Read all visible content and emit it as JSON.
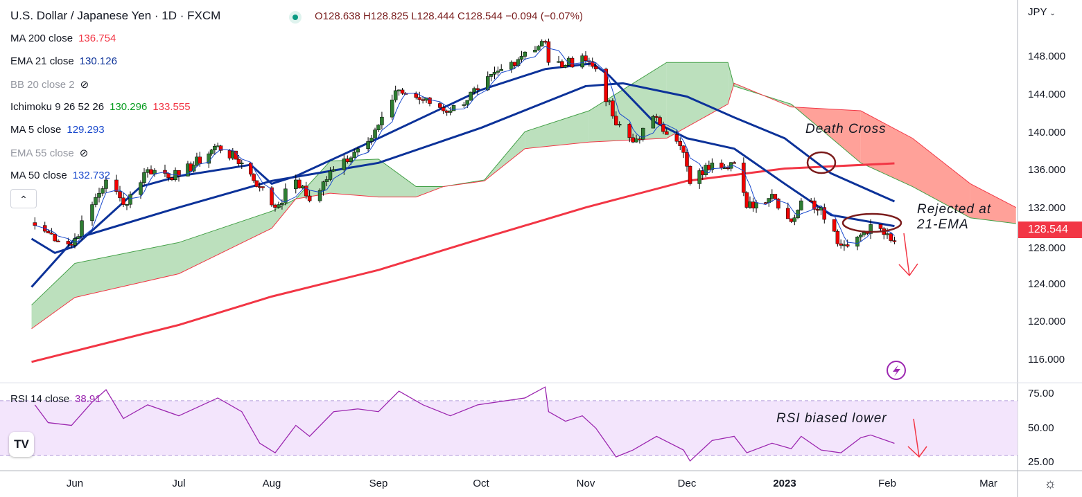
{
  "header": {
    "title": "U.S. Dollar / Japanese Yen · 1D · FXCM",
    "ohlc": "O128.638 H128.825 L128.444 C128.544 −0.094 (−0.07%)"
  },
  "legend": [
    {
      "name": "MA 200 close",
      "values": [
        "136.754"
      ],
      "colors": [
        "#f23645"
      ]
    },
    {
      "name": "EMA 21 close",
      "values": [
        "130.126"
      ],
      "colors": [
        "#0c3299"
      ]
    },
    {
      "name": "BB 20 close 2",
      "values": [],
      "hidden": true
    },
    {
      "name": "Ichimoku 9 26 52 26",
      "values": [
        "130.296",
        "133.555"
      ],
      "colors": [
        "#089c20",
        "#f23645"
      ]
    },
    {
      "name": "MA 5 close",
      "values": [
        "129.293"
      ],
      "colors": [
        "#1848cc"
      ]
    },
    {
      "name": "EMA 55 close",
      "values": [],
      "hidden": true
    },
    {
      "name": "MA 50 close",
      "values": [
        "132.732"
      ],
      "colors": [
        "#1848cc"
      ]
    }
  ],
  "rsi_legend": {
    "name": "RSI 14 close",
    "value": "38.91"
  },
  "currency": "JPY",
  "current_price": "128.544",
  "annotations": {
    "death_cross": "Death Cross",
    "rejected_1": "Rejected at",
    "rejected_2": "21-EMA",
    "rsi": "RSI biased lower"
  },
  "logo": "TV",
  "colors": {
    "up": "#2e7d32",
    "down": "#f00000",
    "ma200": "#f23645",
    "blue": "#0c3299",
    "ma5": "#1848cc",
    "cloud_green": "#a5d6a7",
    "cloud_red": "#ff8a80",
    "rsi": "#9c27b0",
    "ann": "#7b1c1c"
  },
  "chart_data": [
    {
      "type": "line",
      "title": "U.S. Dollar / Japanese Yen · 1D · FXCM",
      "y_ticks": [
        "148.000",
        "144.000",
        "140.000",
        "136.000",
        "132.000",
        "128.000",
        "124.000",
        "120.000",
        "116.000"
      ],
      "ylim": [
        114.5,
        151.5
      ],
      "x_ticks": [
        {
          "label": "Jun",
          "date": "2022-06-01"
        },
        {
          "label": "Jul",
          "date": "2022-07-01"
        },
        {
          "label": "Aug",
          "date": "2022-08-01"
        },
        {
          "label": "Sep",
          "date": "2022-09-01"
        },
        {
          "label": "Oct",
          "date": "2022-10-01"
        },
        {
          "label": "Nov",
          "date": "2022-11-01"
        },
        {
          "label": "Dec",
          "date": "2022-12-01"
        },
        {
          "label": "2023",
          "date": "2023-01-01"
        },
        {
          "label": "Feb",
          "date": "2023-02-01"
        },
        {
          "label": "Mar",
          "date": "2023-03-01"
        }
      ],
      "price_keypoints": {
        "dates": [
          "2022-05-20",
          "2022-05-24",
          "2022-05-31",
          "2022-06-06",
          "2022-06-10",
          "2022-06-15",
          "2022-06-22",
          "2022-07-01",
          "2022-07-14",
          "2022-07-22",
          "2022-07-28",
          "2022-08-02",
          "2022-08-08",
          "2022-08-12",
          "2022-08-19",
          "2022-08-26",
          "2022-09-01",
          "2022-09-07",
          "2022-09-14",
          "2022-09-22",
          "2022-09-30",
          "2022-10-14",
          "2022-10-20",
          "2022-10-21",
          "2022-10-26",
          "2022-10-31",
          "2022-11-04",
          "2022-11-10",
          "2022-11-15",
          "2022-11-22",
          "2022-11-30",
          "2022-12-02",
          "2022-12-09",
          "2022-12-16",
          "2022-12-20",
          "2022-12-28",
          "2023-01-03",
          "2023-01-06",
          "2023-01-12",
          "2023-01-18",
          "2023-01-24",
          "2023-01-27",
          "2023-02-03"
        ],
        "close": [
          130.2,
          129.4,
          128.1,
          132.4,
          135.0,
          132.4,
          136.1,
          135.4,
          138.6,
          136.8,
          134.3,
          132.1,
          135.0,
          132.8,
          136.1,
          138.3,
          140.8,
          144.5,
          143.4,
          142.3,
          144.5,
          148.5,
          149.6,
          147.4,
          147.1,
          148.1,
          146.7,
          140.8,
          139.0,
          141.6,
          137.9,
          134.6,
          136.8,
          136.8,
          132.1,
          133.5,
          130.6,
          132.8,
          132.1,
          128.1,
          129.2,
          130.3,
          128.544
        ],
        "rsi": [
          67,
          54,
          52,
          69,
          78,
          57,
          67,
          59,
          72,
          62,
          39,
          32,
          52,
          44,
          62,
          64,
          62,
          77,
          67,
          59,
          67,
          72,
          80,
          62,
          55,
          59,
          50,
          29,
          34,
          44,
          34,
          26,
          41,
          44,
          32,
          39,
          35,
          44,
          34,
          32,
          43,
          45,
          38.91
        ]
      },
      "series": [
        {
          "name": "MA 200",
          "dates": [
            "2022-05-19",
            "2022-07-01",
            "2022-08-01",
            "2022-09-01",
            "2022-10-01",
            "2022-11-01",
            "2022-12-01",
            "2023-01-01",
            "2023-02-03"
          ],
          "values": [
            115.8,
            119.7,
            122.7,
            125.5,
            128.8,
            132.1,
            134.9,
            136.2,
            136.75
          ]
        },
        {
          "name": "MA 50",
          "dates": [
            "2022-05-19",
            "2022-06-01",
            "2022-07-01",
            "2022-08-01",
            "2022-09-01",
            "2022-10-01",
            "2022-11-01",
            "2022-11-12",
            "2022-12-01",
            "2022-12-16",
            "2023-01-01",
            "2023-01-15",
            "2023-02-03"
          ],
          "values": [
            123.7,
            128.8,
            132.1,
            134.9,
            136.8,
            140.5,
            144.9,
            145.2,
            143.8,
            141.6,
            139.4,
            135.7,
            132.73
          ]
        },
        {
          "name": "EMA 21",
          "dates": [
            "2022-05-19",
            "2022-05-26",
            "2022-06-01",
            "2022-06-20",
            "2022-07-01",
            "2022-07-25",
            "2022-08-01",
            "2022-08-08",
            "2022-09-01",
            "2022-10-01",
            "2022-10-20",
            "2022-11-03",
            "2022-11-08",
            "2022-11-21",
            "2022-12-01",
            "2022-12-16",
            "2023-01-01",
            "2023-01-15",
            "2023-02-03"
          ],
          "values": [
            128.8,
            127.3,
            128.0,
            134.3,
            135.4,
            136.6,
            134.6,
            135.4,
            139.4,
            144.5,
            146.7,
            147.3,
            146.0,
            141.2,
            139.4,
            138.3,
            134.6,
            131.3,
            130.13
          ]
        }
      ],
      "ichimoku_cloud": {
        "dates": [
          "2022-05-19",
          "2022-06-01",
          "2022-07-01",
          "2022-08-01",
          "2022-08-08",
          "2022-08-18",
          "2022-09-01",
          "2022-09-12",
          "2022-09-20",
          "2022-10-02",
          "2022-10-14",
          "2022-11-02",
          "2022-11-25",
          "2022-12-14",
          "2022-12-16",
          "2023-01-03",
          "2023-01-24",
          "2023-02-08",
          "2023-02-24",
          "2023-03-09"
        ],
        "span_a": [
          121.8,
          126.2,
          128.4,
          131.7,
          133.0,
          137.0,
          137.2,
          134.3,
          134.3,
          135.0,
          140.1,
          142.3,
          147.4,
          147.4,
          144.9,
          143.0,
          136.8,
          134.3,
          131.0,
          130.4
        ],
        "span_b": [
          119.3,
          122.6,
          125.1,
          129.9,
          133.0,
          133.6,
          133.2,
          133.2,
          134.3,
          134.9,
          138.3,
          139.0,
          139.4,
          143.0,
          145.2,
          142.7,
          142.3,
          139.4,
          134.6,
          132.1
        ]
      }
    },
    {
      "type": "line",
      "title": "RSI 14 close",
      "ylim": [
        21,
        79
      ],
      "y_ticks": [
        "75.00",
        "50.00",
        "25.00"
      ],
      "bands": [
        30,
        70
      ]
    }
  ]
}
